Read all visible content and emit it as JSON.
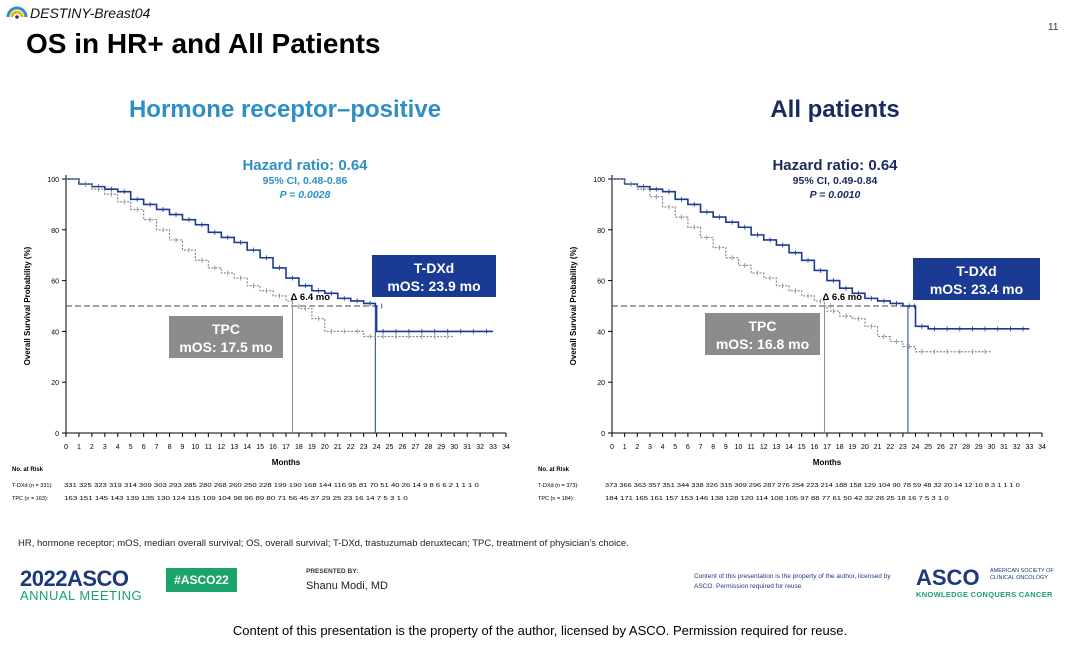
{
  "header": {
    "trial_name": "DESTINY-Breast04",
    "slide_title": "OS in HR+ and All Patients",
    "slide_number": "11"
  },
  "colors": {
    "tdxd": "#1b3a94",
    "tpc": "#8a8a8a",
    "hr_title": "#2f8fc4",
    "all_title": "#1b2a5e"
  },
  "chart_data": [
    {
      "type": "line",
      "id": "hr_positive",
      "title": "Hormone receptor–positive",
      "hr_line": "Hazard ratio: 0.64",
      "ci_line": "95% CI, 0.48-0.86",
      "p_line": "P = 0.0028",
      "xlabel": "Months",
      "ylabel": "Overall Survival Probability (%)",
      "xlim": [
        0,
        34
      ],
      "ylim": [
        0,
        100
      ],
      "yticks": [
        0,
        20,
        40,
        60,
        80,
        100
      ],
      "xticks": [
        0,
        1,
        2,
        3,
        4,
        5,
        6,
        7,
        8,
        9,
        10,
        11,
        12,
        13,
        14,
        15,
        16,
        17,
        18,
        19,
        20,
        21,
        22,
        23,
        24,
        25,
        26,
        27,
        28,
        29,
        30,
        31,
        32,
        33,
        34
      ],
      "reference_line": 50,
      "delta_label": "Δ 6.4 mo",
      "tdxd_box": {
        "line1": "T-DXd",
        "line2": "mOS: 23.9 mo"
      },
      "tpc_box": {
        "line1": "TPC",
        "line2": "mOS: 17.5 mo"
      },
      "series": [
        {
          "name": "T-DXd",
          "median": 23.9,
          "x": [
            0,
            1,
            2,
            3,
            4,
            5,
            6,
            7,
            8,
            9,
            10,
            11,
            12,
            13,
            14,
            15,
            16,
            17,
            18,
            19,
            20,
            21,
            22,
            23,
            23.9,
            24,
            25,
            26,
            27,
            28,
            29,
            30,
            31,
            32,
            33
          ],
          "y": [
            100,
            98,
            97,
            96,
            95,
            92,
            90,
            88,
            86,
            84,
            82,
            79,
            77,
            75,
            72,
            69,
            65,
            61,
            58,
            56,
            55,
            53,
            52,
            51,
            50,
            40,
            40,
            40,
            40,
            40,
            40,
            40,
            40,
            40,
            40
          ]
        },
        {
          "name": "TPC",
          "median": 17.5,
          "x": [
            0,
            1,
            2,
            3,
            4,
            5,
            6,
            7,
            8,
            9,
            10,
            11,
            12,
            13,
            14,
            15,
            16,
            17,
            17.5,
            18,
            19,
            20,
            21,
            22,
            23,
            24,
            25,
            26,
            27,
            28,
            29,
            30
          ],
          "y": [
            100,
            98,
            96,
            94,
            91,
            88,
            84,
            80,
            76,
            72,
            68,
            65,
            63,
            61,
            58,
            56,
            54,
            52,
            50,
            49,
            45,
            40,
            40,
            40,
            38,
            38,
            38,
            38,
            38,
            38,
            38,
            38
          ]
        }
      ],
      "at_risk": {
        "label": "No. at Risk",
        "rows": [
          {
            "name": "T-DXd (n = 331):",
            "values": "331 325 323 319 314 309 303 293 285 280 268 260 250 228 199 190 168 144 116 95 81 70 51 40 26 14 9 8 6 6 2 1 1 1 0"
          },
          {
            "name": "TPC (n = 163):",
            "values": "163 151 145 143 139 135 130 124 115 109 104 98 96 89 80 71 56 45 37 29 25 23 16 14 7 5 3 1 0"
          }
        ]
      }
    },
    {
      "type": "line",
      "id": "all_patients",
      "title": "All patients",
      "hr_line": "Hazard ratio: 0.64",
      "ci_line": "95% CI, 0.49-0.84",
      "p_line": "P = 0.0010",
      "xlabel": "Months",
      "ylabel": "Overall Survival Probability (%)",
      "xlim": [
        0,
        34
      ],
      "ylim": [
        0,
        100
      ],
      "yticks": [
        0,
        20,
        40,
        60,
        80,
        100
      ],
      "xticks": [
        0,
        1,
        2,
        3,
        4,
        5,
        6,
        7,
        8,
        9,
        10,
        11,
        12,
        13,
        14,
        15,
        16,
        17,
        18,
        19,
        20,
        21,
        22,
        23,
        24,
        25,
        26,
        27,
        28,
        29,
        30,
        31,
        32,
        33,
        34
      ],
      "reference_line": 50,
      "delta_label": "Δ 6.6 mo",
      "tdxd_box": {
        "line1": "T-DXd",
        "line2": "mOS: 23.4 mo"
      },
      "tpc_box": {
        "line1": "TPC",
        "line2": "mOS: 16.8 mo"
      },
      "series": [
        {
          "name": "T-DXd",
          "median": 23.4,
          "x": [
            0,
            1,
            2,
            3,
            4,
            5,
            6,
            7,
            8,
            9,
            10,
            11,
            12,
            13,
            14,
            15,
            16,
            17,
            18,
            19,
            20,
            21,
            22,
            23,
            23.4,
            24,
            25,
            26,
            27,
            28,
            29,
            30,
            31,
            32,
            33
          ],
          "y": [
            100,
            98,
            97,
            96,
            95,
            92,
            90,
            87,
            85,
            83,
            81,
            78,
            76,
            74,
            71,
            68,
            64,
            60,
            57,
            55,
            53,
            52,
            51,
            50,
            50,
            42,
            41,
            41,
            41,
            41,
            41,
            41,
            41,
            41,
            41
          ]
        },
        {
          "name": "TPC",
          "median": 16.8,
          "x": [
            0,
            1,
            2,
            3,
            4,
            5,
            6,
            7,
            8,
            9,
            10,
            11,
            12,
            13,
            14,
            15,
            16,
            16.8,
            17,
            18,
            19,
            20,
            21,
            22,
            23,
            24,
            25,
            26,
            27,
            28,
            29,
            30
          ],
          "y": [
            100,
            98,
            96,
            93,
            89,
            85,
            81,
            77,
            73,
            69,
            66,
            63,
            61,
            58,
            56,
            54,
            52,
            50,
            48,
            46,
            45,
            42,
            38,
            36,
            34,
            32,
            32,
            32,
            32,
            32,
            32,
            32
          ]
        }
      ],
      "at_risk": {
        "label": "No. at Risk",
        "rows": [
          {
            "name": "T-DXd (n = 373):",
            "values": "373 366 363 357 351 344 338 326 315 309 296 287 276 254 223 214 188 158 129 104 90 78 59 48 32 20 14 12 10 8 3 1 1 1 0"
          },
          {
            "name": "TPC (n = 184):",
            "values": "184 171 165 161 157 153 146 138 128 120 114 108 105 97 88 77 61 50 42 32 28 25 18 16 7 5 3 1 0"
          }
        ]
      }
    }
  ],
  "footnote": "HR, hormone receptor; mOS, median overall survival; OS, overall survival; T-DXd, trastuzumab deruxtecan; TPC, treatment of physician's choice.",
  "footer": {
    "asco_year": "2022",
    "asco_word": "ASCO",
    "meeting": "ANNUAL MEETING",
    "hashtag": "#ASCO22",
    "presented_by": "PRESENTED BY:",
    "presenter": "Shanu Modi, MD",
    "property_small": "Content of this presentation is the property of the author, licensed by ASCO. Permission required for reuse.",
    "asco_logo": "ASCO",
    "society": "AMERICAN SOCIETY OF CLINICAL ONCOLOGY",
    "tagline": "KNOWLEDGE CONQUERS CANCER",
    "bottom_notice": "Content of this presentation is the property of the author, licensed by ASCO. Permission required for reuse."
  }
}
